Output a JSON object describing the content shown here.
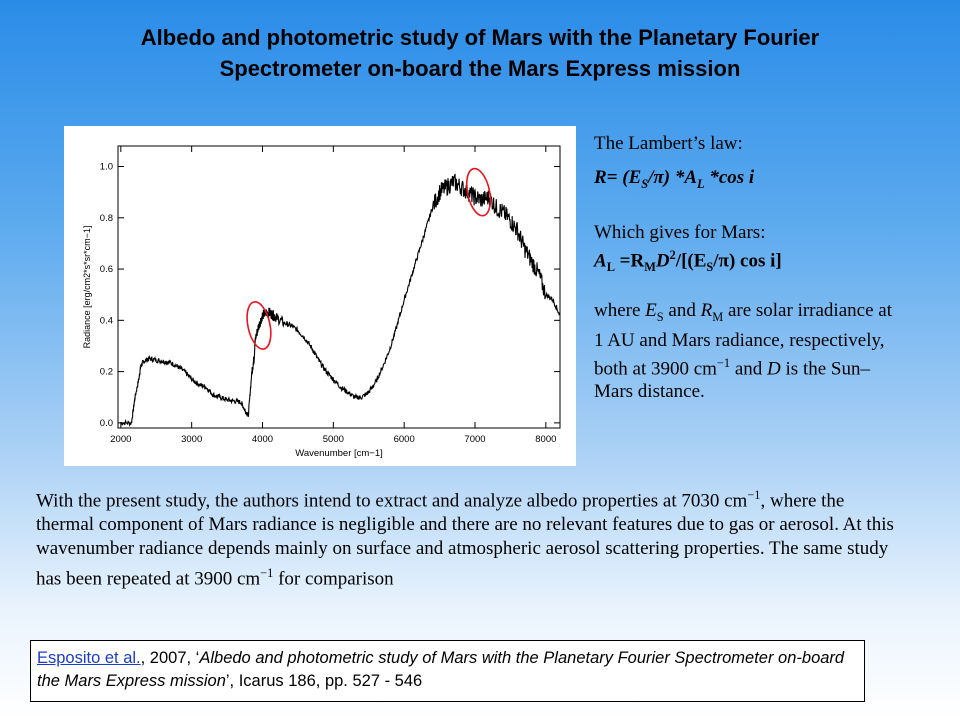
{
  "title": {
    "line1": "Albedo and photometric study of Mars with the Planetary Fourier",
    "line2": "Spectrometer on-board the Mars Express mission"
  },
  "figure": {
    "ylabel": "Radiance [erg/cm2*s*sr*cm−1]",
    "xlabel": "Wavenumber [cm−1]",
    "circle_color": "#e8141e",
    "line_color": "#000000"
  },
  "chart_data": {
    "type": "line",
    "title": "",
    "xlabel": "Wavenumber [cm−1]",
    "ylabel": "Radiance [erg/cm2*s*sr*cm−1]",
    "xlim": [
      1960,
      8200
    ],
    "ylim": [
      -0.02,
      1.08
    ],
    "x_ticks": [
      2000,
      3000,
      4000,
      5000,
      6000,
      7000,
      8000
    ],
    "y_ticks": [
      0.0,
      0.2,
      0.4,
      0.6,
      0.8,
      1.0
    ],
    "series": [
      {
        "x": [
          2000,
          2150,
          2200,
          2260,
          2280,
          2320,
          2400,
          2500,
          2600,
          2700,
          2800,
          2900,
          3000,
          3100,
          3200,
          3300,
          3400,
          3500,
          3600,
          3700,
          3750,
          3800,
          3850,
          3880,
          3900,
          3950,
          4000,
          4050,
          4100,
          4150,
          4200,
          4300,
          4400,
          4500,
          4600,
          4700,
          4800,
          4900,
          5000,
          5100,
          5200,
          5300,
          5400,
          5500,
          5600,
          5700,
          5800,
          5900,
          6000,
          6100,
          6200,
          6300,
          6400,
          6500,
          6600,
          6700,
          6800,
          6900,
          7000,
          7100,
          7200,
          7300,
          7400,
          7500,
          7600,
          7700,
          7800,
          7900,
          8000,
          8100,
          8200
        ],
        "y": [
          0.0,
          0.0,
          0.1,
          0.18,
          0.22,
          0.24,
          0.25,
          0.245,
          0.24,
          0.235,
          0.22,
          0.2,
          0.17,
          0.15,
          0.14,
          0.11,
          0.1,
          0.09,
          0.085,
          0.08,
          0.05,
          0.03,
          0.2,
          0.25,
          0.33,
          0.38,
          0.42,
          0.43,
          0.43,
          0.42,
          0.41,
          0.39,
          0.38,
          0.36,
          0.33,
          0.29,
          0.24,
          0.2,
          0.17,
          0.14,
          0.12,
          0.1,
          0.1,
          0.12,
          0.16,
          0.22,
          0.29,
          0.38,
          0.48,
          0.57,
          0.66,
          0.75,
          0.84,
          0.9,
          0.92,
          0.94,
          0.92,
          0.9,
          0.88,
          0.87,
          0.88,
          0.84,
          0.82,
          0.79,
          0.75,
          0.68,
          0.63,
          0.58,
          0.5,
          0.48,
          0.42
        ]
      }
    ],
    "annotations": [
      {
        "shape": "ellipse",
        "x": 3950,
        "y": 0.38,
        "color": "#e8141e"
      },
      {
        "shape": "ellipse",
        "x": 7050,
        "y": 0.9,
        "color": "#e8141e"
      }
    ],
    "grid": false
  },
  "lambert": {
    "title": "The Lambert’s law:",
    "formula_R": "R= (E",
    "formula_sub1": "S",
    "formula_mid": "/π) *A",
    "formula_sub2": "L",
    "formula_end": " *cos i"
  },
  "mars": {
    "title": "Which gives for Mars:",
    "f_A": "A",
    "f_subL": "L",
    "f_eq": " =R",
    "f_subM": "M",
    "f_D": "D",
    "f_sup2": "2",
    "f_rest1": "/[(E",
    "f_subS": "S",
    "f_rest2": "/π) cos i]"
  },
  "where": {
    "t1": "where ",
    "E": "E",
    "subS": "S",
    "t2": " and ",
    "R": "R",
    "subM": "M",
    "t3": " are solar irradiance at 1 AU and Mars radiance, respectively, both at 3900 cm",
    "sup": "−1",
    "t4": " and ",
    "D": "D",
    "t5": " is the Sun–Mars distance."
  },
  "body": {
    "t1": "With the present study, the authors intend to extract and analyze albedo properties at 7030 cm",
    "sup1": "−1",
    "t2": ", where the thermal component of Mars radiance is negligible and there are no relevant features due to gas or aerosol. At this wavenumber radiance depends mainly on surface and atmospheric aerosol scattering properties. The same study has been repeated at 3900 cm",
    "sup2": "−1",
    "t3": " for comparison"
  },
  "reference": {
    "link": "Esposito et al.",
    "year": ", 2007, ‘",
    "paper_title": "Albedo and photometric study of Mars with the Planetary Fourier Spectrometer on-board the Mars Express mission",
    "journal": "’, Icarus 186, pp. 527 - 546"
  }
}
